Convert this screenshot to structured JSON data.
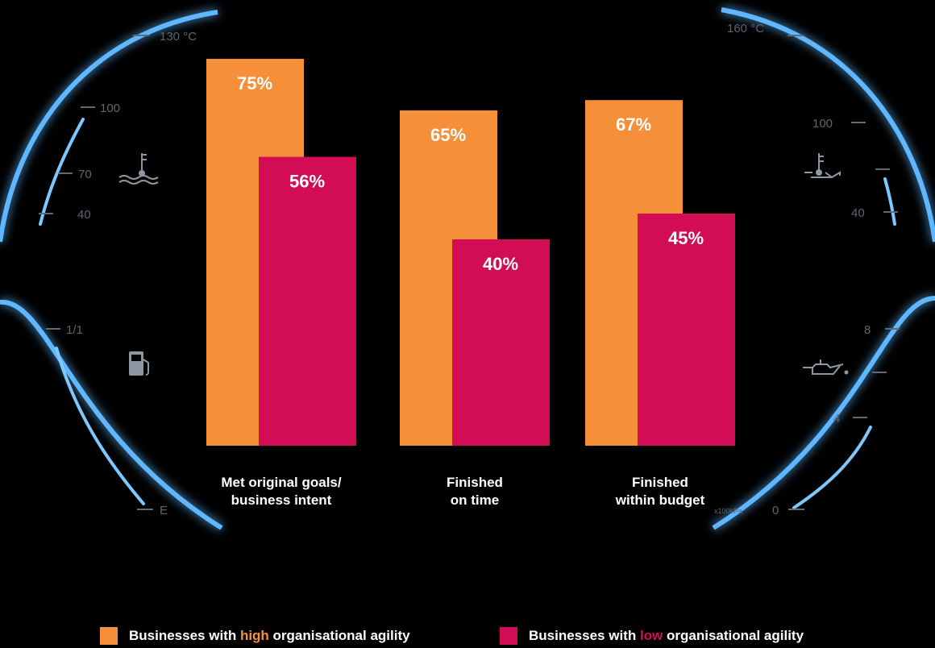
{
  "chart_data": {
    "type": "bar",
    "categories": [
      "Met original goals/\nbusiness intent",
      "Finished\non time",
      "Finished\nwithin budget"
    ],
    "series": [
      {
        "name": "Businesses with high organisational agility",
        "values": [
          75,
          65,
          67
        ],
        "labels": [
          "75%",
          "65%",
          "67%"
        ],
        "color": "#f58f3a"
      },
      {
        "name": "Businesses with low organisational agility",
        "values": [
          56,
          40,
          45
        ],
        "labels": [
          "56%",
          "40%",
          "45%"
        ],
        "color": "#d20d55"
      }
    ],
    "ylim": [
      0,
      75
    ],
    "grid": false,
    "legend_position": "bottom"
  },
  "legend": {
    "high": {
      "prefix": "Businesses with ",
      "highlight": "high",
      "suffix": " organisational agility"
    },
    "low": {
      "prefix": "Businesses with ",
      "highlight": "low",
      "suffix": " organisational agility"
    }
  },
  "dashboard": {
    "left_top": [
      "130 °C",
      "100",
      "70",
      "40"
    ],
    "left_bottom": [
      "1/1",
      "E"
    ],
    "right_top": [
      "160 °C",
      "100",
      "40"
    ],
    "right_bottom": [
      "8",
      "4",
      "0",
      "x100kPa"
    ],
    "icons": [
      "coolant-temperature-icon",
      "fuel-pump-icon",
      "oil-temperature-icon",
      "oil-pressure-icon"
    ]
  }
}
